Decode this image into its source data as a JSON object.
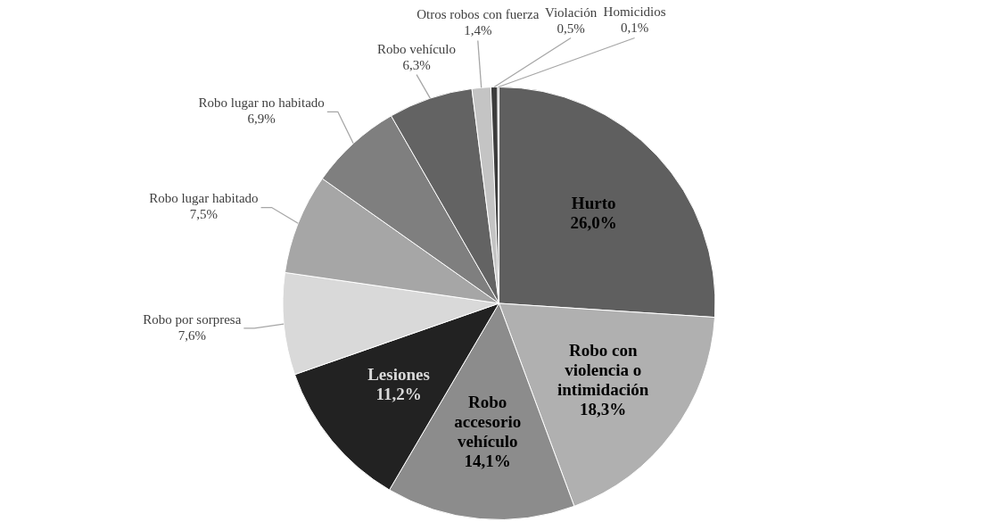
{
  "chart_data": {
    "type": "pie",
    "categories": [
      "Hurto",
      "Robo con violencia o intimidación",
      "Robo accesorio vehículo",
      "Lesiones",
      "Robo por sorpresa",
      "Robo lugar habitado",
      "Robo lugar no habitado",
      "Robo vehículo",
      "Otros robos con fuerza",
      "Violación",
      "Homicidios"
    ],
    "values": [
      26.0,
      18.3,
      14.1,
      11.2,
      7.6,
      7.5,
      6.9,
      6.3,
      1.4,
      0.5,
      0.1
    ],
    "value_labels": [
      "26,0%",
      "18,3%",
      "14,1%",
      "11,2%",
      "7,6%",
      "7,5%",
      "6,9%",
      "6,3%",
      "1,4%",
      "0,5%",
      "0,1%"
    ],
    "colors": [
      "#5f5f5f",
      "#b0b0b0",
      "#8c8c8c",
      "#222222",
      "#d9d9d9",
      "#a6a6a6",
      "#7f7f7f",
      "#636363",
      "#c4c4c4",
      "#3c3c3c",
      "#8a8a8a"
    ]
  }
}
